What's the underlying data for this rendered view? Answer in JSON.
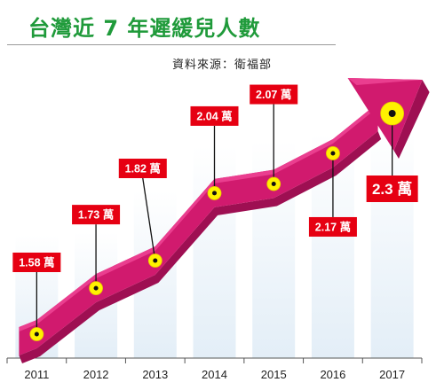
{
  "title": "台灣近 7 年遲緩兒人數",
  "source": "資料來源：衛福部",
  "chart_data": {
    "type": "line",
    "categories": [
      "2011",
      "2012",
      "2013",
      "2014",
      "2015",
      "2016",
      "2017"
    ],
    "values": [
      1.58,
      1.73,
      1.82,
      2.04,
      2.07,
      2.17,
      2.3
    ],
    "unit": "萬",
    "data_labels": [
      "1.58 萬",
      "1.73 萬",
      "1.82 萬",
      "2.04 萬",
      "2.07 萬",
      "2.17 萬",
      "2.3 萬"
    ],
    "ylim": [
      1.3,
      2.5
    ],
    "grid": false,
    "legend": "none",
    "colors": {
      "arrow": "#d11a6e",
      "arrow_dark": "#9e0f52",
      "arrow_light": "#ea3e8f",
      "marker": "#fff200",
      "label_bg": "#e60012",
      "label_text": "#ffffff",
      "column": "#e8f1f8",
      "title": "#1f9a3a"
    }
  }
}
